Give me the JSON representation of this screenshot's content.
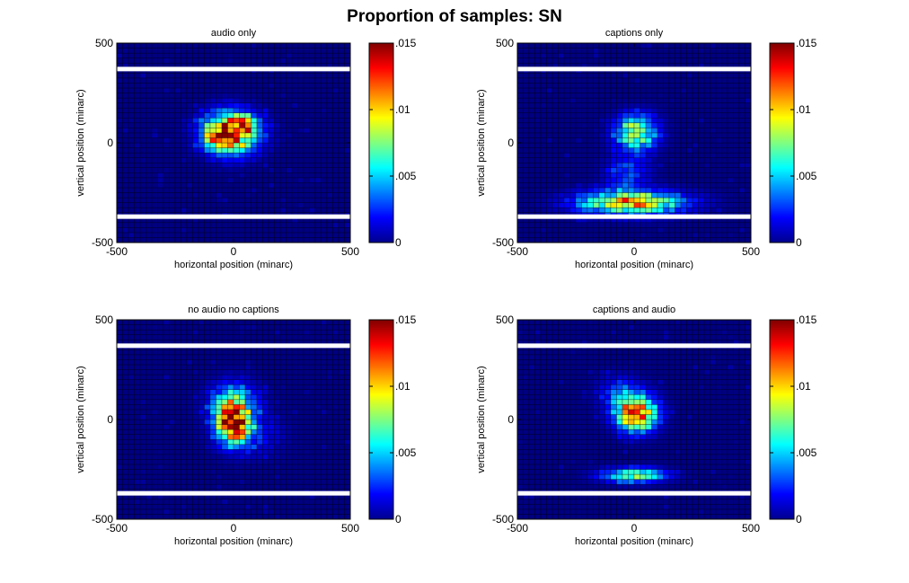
{
  "figure": {
    "title": "Proportion of samples: SN"
  },
  "colormap": "jet",
  "panel_background": "#00008f",
  "aoi_line_color": "#ffffff",
  "chart_data": [
    {
      "type": "heatmap",
      "title": "audio only",
      "xlabel": "horizontal position (minarc)",
      "ylabel": "vertical position (minarc)",
      "xlim": [
        -500,
        500
      ],
      "ylim": [
        -500,
        500
      ],
      "xticks": [
        -500,
        0,
        500
      ],
      "yticks": [
        -500,
        0,
        500
      ],
      "bin_size": 25,
      "grid": true,
      "aoi_lines_y": [
        370,
        -370
      ],
      "colorbar": {
        "range": [
          0,
          0.015
        ],
        "ticks": [
          0,
          0.005,
          0.01,
          0.015
        ],
        "ticklabels": [
          "0",
          ".005",
          ".01",
          ".015"
        ]
      },
      "blobs": [
        {
          "x": -10,
          "y": 50,
          "sx": 80,
          "sy": 70,
          "peak": 0.0125
        },
        {
          "x": 40,
          "y": 100,
          "sx": 40,
          "sy": 30,
          "peak": 0.005
        },
        {
          "x": -70,
          "y": 30,
          "sx": 40,
          "sy": 40,
          "peak": 0.004
        }
      ],
      "spread": 0.35,
      "seed": 11
    },
    {
      "type": "heatmap",
      "title": "captions only",
      "xlabel": "horizontal position (minarc)",
      "ylabel": "vertical position (minarc)",
      "xlim": [
        -500,
        500
      ],
      "ylim": [
        -500,
        500
      ],
      "xticks": [
        -500,
        0,
        500
      ],
      "yticks": [
        -500,
        0,
        500
      ],
      "bin_size": 25,
      "grid": true,
      "aoi_lines_y": [
        370,
        -370
      ],
      "colorbar": {
        "range": [
          0,
          0.015
        ],
        "ticks": [
          0,
          0.005,
          0.01,
          0.015
        ],
        "ticklabels": [
          "0",
          ".005",
          ".01",
          ".015"
        ]
      },
      "blobs": [
        {
          "x": 10,
          "y": 50,
          "sx": 60,
          "sy": 60,
          "peak": 0.0085
        },
        {
          "x": -10,
          "y": -300,
          "sx": 150,
          "sy": 40,
          "peak": 0.0105
        },
        {
          "x": -30,
          "y": -150,
          "sx": 60,
          "sy": 60,
          "peak": 0.003
        }
      ],
      "spread": 0.3,
      "seed": 23
    },
    {
      "type": "heatmap",
      "title": "no audio no captions",
      "xlabel": "horizontal position (minarc)",
      "ylabel": "vertical position (minarc)",
      "xlim": [
        -500,
        500
      ],
      "ylim": [
        -500,
        500
      ],
      "xticks": [
        -500,
        0,
        500
      ],
      "yticks": [
        -500,
        0,
        500
      ],
      "bin_size": 25,
      "grid": true,
      "aoi_lines_y": [
        370,
        -370
      ],
      "colorbar": {
        "range": [
          0,
          0.015
        ],
        "ticks": [
          0,
          0.005,
          0.01,
          0.015
        ],
        "ticklabels": [
          "0",
          ".005",
          ".01",
          ".015"
        ]
      },
      "blobs": [
        {
          "x": 0,
          "y": -20,
          "sx": 45,
          "sy": 60,
          "peak": 0.0135
        },
        {
          "x": 0,
          "y": 80,
          "sx": 70,
          "sy": 70,
          "peak": 0.006
        },
        {
          "x": 60,
          "y": -80,
          "sx": 90,
          "sy": 70,
          "peak": 0.0025
        }
      ],
      "spread": 0.35,
      "seed": 37
    },
    {
      "type": "heatmap",
      "title": "captions and audio",
      "xlabel": "horizontal position (minarc)",
      "ylabel": "vertical position (minarc)",
      "xlim": [
        -500,
        500
      ],
      "ylim": [
        -500,
        500
      ],
      "xticks": [
        -500,
        0,
        500
      ],
      "yticks": [
        -500,
        0,
        500
      ],
      "bin_size": 25,
      "grid": true,
      "aoi_lines_y": [
        370,
        -370
      ],
      "colorbar": {
        "range": [
          0,
          0.015
        ],
        "ticks": [
          0,
          0.005,
          0.01,
          0.015
        ],
        "ticklabels": [
          "0",
          ".005",
          ".01",
          ".015"
        ]
      },
      "blobs": [
        {
          "x": 10,
          "y": 30,
          "sx": 60,
          "sy": 60,
          "peak": 0.012
        },
        {
          "x": 0,
          "y": -280,
          "sx": 90,
          "sy": 25,
          "peak": 0.0075
        },
        {
          "x": -60,
          "y": 130,
          "sx": 60,
          "sy": 60,
          "peak": 0.003
        }
      ],
      "spread": 0.3,
      "seed": 53
    }
  ]
}
